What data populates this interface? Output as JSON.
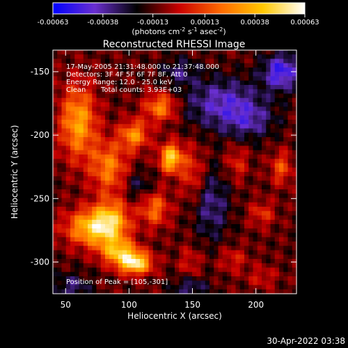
{
  "chart_data": {
    "type": "heatmap",
    "title": "Reconstructed RHESSI Image",
    "xlabel": "Heliocentric X (arcsec)",
    "ylabel": "Heliocentric Y (arcsec)",
    "xlim": [
      40,
      232
    ],
    "ylim": [
      -325,
      -133
    ],
    "x_ticks": [
      50,
      100,
      150,
      200
    ],
    "y_ticks": [
      -150,
      -200,
      -250,
      -300
    ],
    "colorbar": {
      "range": [
        -0.00063,
        0.00063
      ],
      "tick_values": [
        -0.00063,
        -0.00038,
        -0.00013,
        0.00013,
        0.00038,
        0.00063
      ],
      "tick_labels": [
        "-0.00063",
        "-0.00038",
        "-0.00013",
        "0.00013",
        "0.00038",
        "0.00063"
      ],
      "units": {
        "prefix": "(photons cm",
        "exp1": "-2",
        "mid1": " s",
        "exp2": "-1",
        "mid2": " asec",
        "exp3": "-2",
        "suffix": ")"
      },
      "colors": [
        "#0000ff",
        "#6a2fd0",
        "#000000",
        "#c80000",
        "#ff6a00",
        "#ffc800",
        "#ffffff"
      ]
    },
    "annotations": {
      "time": "17-May-2005 21:31:48.000 to 21:37:48.000",
      "detectors": "Detectors: 3F 4F 5F 6F 7F 8F, Att 0",
      "energy": "Energy Range: 12.0 - 25.0 keV",
      "clean": "Clean",
      "counts": "Total counts: 3.93E+03",
      "peak": "Position of Peak = [105,-301]"
    },
    "peak": {
      "x": 105,
      "y": -301
    },
    "sources": [
      {
        "x": 105,
        "y": -301,
        "value": 0.00063,
        "sx": 9,
        "sy": 6
      },
      {
        "x": 133,
        "y": -218,
        "value": 0.00058,
        "sx": 6,
        "sy": 8
      },
      {
        "x": 70,
        "y": -273,
        "value": 0.0005,
        "sx": 14,
        "sy": 10
      },
      {
        "x": 86,
        "y": -268,
        "value": 0.00044,
        "sx": 10,
        "sy": 12
      },
      {
        "x": 92,
        "y": -292,
        "value": 0.00046,
        "sx": 10,
        "sy": 7
      },
      {
        "x": 60,
        "y": -190,
        "value": 0.00045,
        "sx": 10,
        "sy": 20
      },
      {
        "x": 104,
        "y": -200,
        "value": 0.0004,
        "sx": 8,
        "sy": 8
      },
      {
        "x": 125,
        "y": -178,
        "value": 0.00038,
        "sx": 9,
        "sy": 8
      },
      {
        "x": 84,
        "y": -225,
        "value": 0.00036,
        "sx": 10,
        "sy": 14
      },
      {
        "x": 120,
        "y": -258,
        "value": 0.00032,
        "sx": 8,
        "sy": 10
      },
      {
        "x": 150,
        "y": -230,
        "value": 0.00022,
        "sx": 7,
        "sy": 15
      },
      {
        "x": 185,
        "y": -222,
        "value": 0.00018,
        "sx": 6,
        "sy": 10
      },
      {
        "x": 220,
        "y": -226,
        "value": 0.00026,
        "sx": 6,
        "sy": 9
      },
      {
        "x": 205,
        "y": -262,
        "value": 0.0002,
        "sx": 7,
        "sy": 7
      },
      {
        "x": 182,
        "y": -298,
        "value": 0.00016,
        "sx": 8,
        "sy": 7
      },
      {
        "x": 205,
        "y": -312,
        "value": 0.00014,
        "sx": 8,
        "sy": 6
      },
      {
        "x": 148,
        "y": -300,
        "value": 0.00015,
        "sx": 6,
        "sy": 9
      },
      {
        "x": 175,
        "y": -175,
        "value": -0.0003,
        "sx": 22,
        "sy": 14
      },
      {
        "x": 220,
        "y": -150,
        "value": -0.0004,
        "sx": 10,
        "sy": 10
      },
      {
        "x": 165,
        "y": -255,
        "value": -0.00022,
        "sx": 10,
        "sy": 20
      },
      {
        "x": 195,
        "y": -190,
        "value": -0.00018,
        "sx": 14,
        "sy": 10
      },
      {
        "x": 55,
        "y": -320,
        "value": -0.0002,
        "sx": 10,
        "sy": 8
      },
      {
        "x": 148,
        "y": -320,
        "value": -0.0002,
        "sx": 10,
        "sy": 6
      },
      {
        "x": 108,
        "y": -240,
        "value": -0.00016,
        "sx": 8,
        "sy": 8
      },
      {
        "x": 140,
        "y": -150,
        "value": -0.00018,
        "sx": 10,
        "sy": 8
      }
    ]
  },
  "footer": {
    "timestamp": "30-Apr-2022 03:38"
  }
}
